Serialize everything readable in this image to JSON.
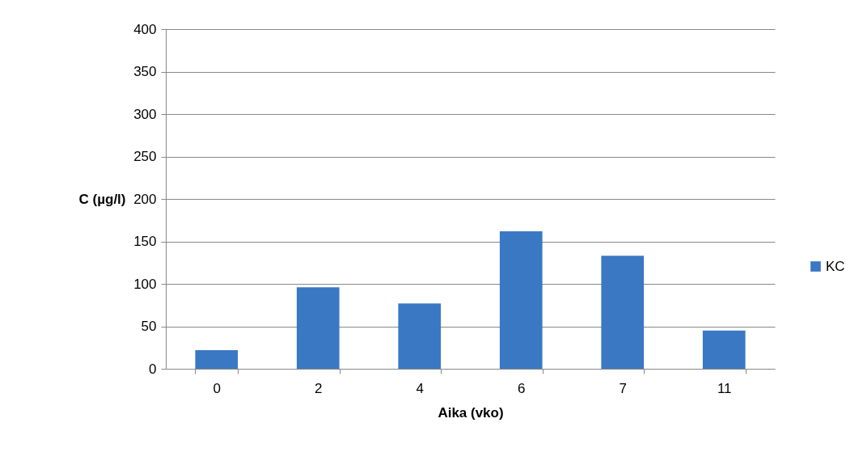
{
  "chart_data": {
    "type": "bar",
    "xlabel": "Aika (vko)",
    "ylabel": "C (µg/l)",
    "categories": [
      "0",
      "2",
      "4",
      "6",
      "7",
      "11"
    ],
    "series": [
      {
        "name": "KC",
        "color": "#3a78c4",
        "values": [
          22,
          96,
          77,
          162,
          133,
          45
        ]
      }
    ],
    "ylim": [
      0,
      400
    ],
    "yticks": [
      0,
      50,
      100,
      150,
      200,
      250,
      300,
      350,
      400
    ],
    "grid": "y",
    "legend": "right"
  }
}
